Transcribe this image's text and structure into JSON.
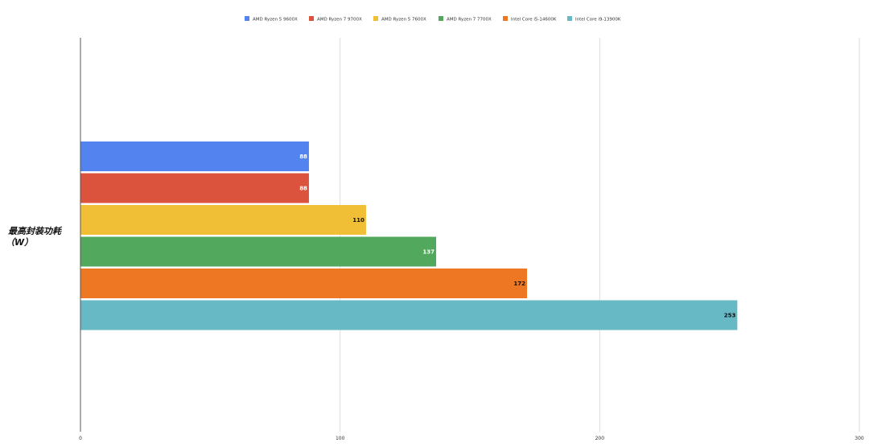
{
  "chart_data": {
    "type": "bar",
    "orientation": "horizontal",
    "categories": [
      "最高封装功耗\n（W）"
    ],
    "series": [
      {
        "name": "AMD Ryzen 5 9600X",
        "values": [
          88
        ],
        "color": "#5283ef"
      },
      {
        "name": "AMD Ryzen 7 9700X",
        "values": [
          88
        ],
        "color": "#dc533d"
      },
      {
        "name": "AMD Ryzen 5 7600X",
        "values": [
          110
        ],
        "color": "#f0bf35"
      },
      {
        "name": "AMD Ryzen 7 7700X",
        "values": [
          137
        ],
        "color": "#52a85c"
      },
      {
        "name": "Intel Core i5-14600K",
        "values": [
          172
        ],
        "color": "#ee7724"
      },
      {
        "name": "Intel Core i9-13900K",
        "values": [
          253
        ],
        "color": "#66b9c5"
      }
    ],
    "value_label_colors": [
      "#ffffff",
      "#ffffff",
      "#111111",
      "#ffffff",
      "#111111",
      "#111111"
    ],
    "xlim": [
      0,
      300
    ],
    "xticks": [
      0,
      100,
      200,
      300
    ],
    "grid": true,
    "legend_position": "top",
    "title": "",
    "xlabel": "",
    "ylabel": ""
  }
}
